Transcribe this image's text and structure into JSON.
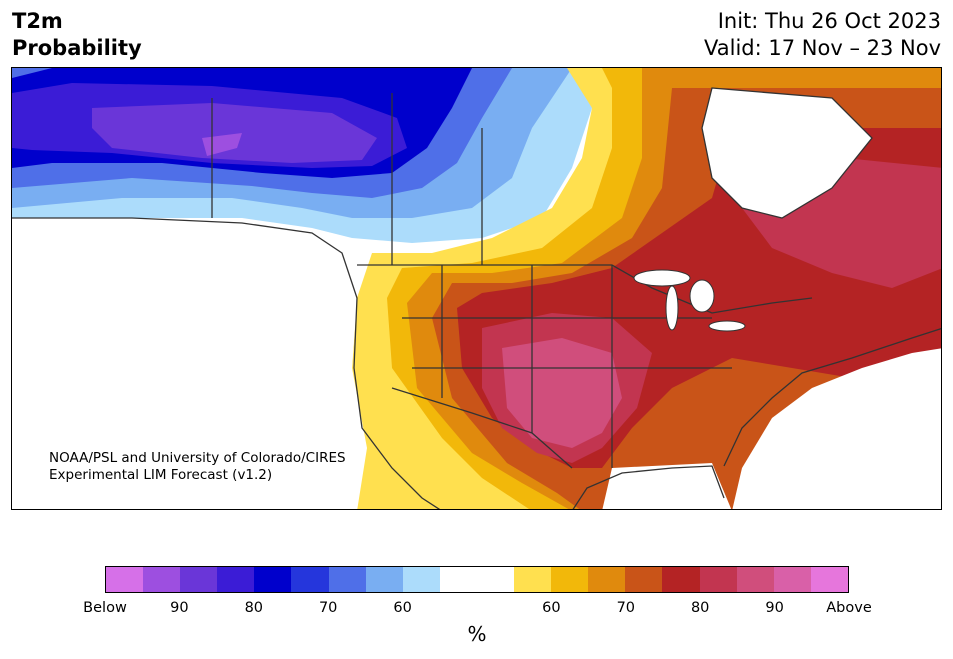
{
  "header": {
    "title_line1": "T2m",
    "title_line2": "Probability",
    "init": "Init: Thu 26 Oct 2023",
    "valid": "Valid: 17 Nov – 23 Nov"
  },
  "credit": {
    "line1": "NOAA/PSL and University of Colorado/CIRES",
    "line2": "Experimental LIM Forecast (v1.2)"
  },
  "colorbar": {
    "unit": "%",
    "colors": [
      "#d670e8",
      "#9d4fe0",
      "#6a36d8",
      "#3b1cd6",
      "#0000cc",
      "#2536dc",
      "#4f6fe8",
      "#79aef2",
      "#acdcfb",
      "#ffffff",
      "#ffffff",
      "#ffe04f",
      "#f2b80a",
      "#e08a0d",
      "#c95418",
      "#b42324",
      "#c23550",
      "#d04e7c",
      "#d960a8",
      "#e676dc"
    ],
    "tick_labels": [
      "Below",
      "90",
      "80",
      "70",
      "60",
      "60",
      "70",
      "80",
      "90",
      "Above"
    ]
  },
  "map": {
    "land_default": "#ffffff",
    "boundary_color": "#333333"
  }
}
